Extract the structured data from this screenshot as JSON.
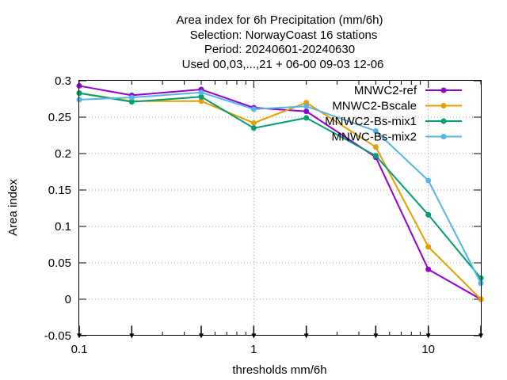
{
  "chart_data": {
    "type": "line",
    "title_lines": [
      "Area index  for 6h Precipitation (mm/6h)",
      "Selection: NorwayCoast     16 stations",
      "Period: 20240601-20240630",
      "Used 00,03,...,21 + 06-00 09-03 12-06"
    ],
    "xlabel": "thresholds mm/6h",
    "ylabel": "Area index",
    "x_scale": "log",
    "xlim": [
      0.1,
      20
    ],
    "ylim": [
      -0.05,
      0.3
    ],
    "x_ticks": [
      {
        "value": 0.1,
        "label": "0.1"
      },
      {
        "value": 1,
        "label": "1"
      },
      {
        "value": 10,
        "label": "10"
      }
    ],
    "y_ticks": [
      {
        "value": -0.05,
        "label": "-0.05"
      },
      {
        "value": 0,
        "label": "0"
      },
      {
        "value": 0.05,
        "label": "0.05"
      },
      {
        "value": 0.1,
        "label": "0.1"
      },
      {
        "value": 0.15,
        "label": "0.15"
      },
      {
        "value": 0.2,
        "label": "0.2"
      },
      {
        "value": 0.25,
        "label": "0.25"
      },
      {
        "value": 0.3,
        "label": "0.3"
      }
    ],
    "grid": true,
    "grid_x_values": [
      1,
      10
    ],
    "grid_y_values": [
      0,
      0.05,
      0.1,
      0.15,
      0.2,
      0.25
    ],
    "legend_position": "top-right",
    "x": [
      0.1,
      0.2,
      0.5,
      1,
      2,
      5,
      10,
      20
    ],
    "series": [
      {
        "name": "MNWC2-ref",
        "color": "#9400d3",
        "values": [
          0.293,
          0.28,
          0.288,
          0.263,
          0.258,
          0.195,
          0.041,
          0.0
        ]
      },
      {
        "name": "MNWC2-Bscale",
        "color": "#e69f00",
        "values": [
          0.283,
          0.272,
          0.272,
          0.242,
          0.27,
          0.209,
          0.072,
          0.0
        ]
      },
      {
        "name": "MNWC2-Bs-mix1",
        "color": "#009e73",
        "values": [
          0.283,
          0.271,
          0.278,
          0.235,
          0.249,
          0.197,
          0.116,
          0.029
        ]
      },
      {
        "name": "MNWC-Bs-mix2",
        "color": "#56b4e9",
        "values": [
          0.274,
          0.277,
          0.284,
          0.261,
          0.265,
          0.231,
          0.163,
          0.022
        ]
      }
    ],
    "bottom_markers_x": [
      0.1,
      0.2,
      0.5,
      1,
      2,
      5,
      10,
      20
    ]
  }
}
